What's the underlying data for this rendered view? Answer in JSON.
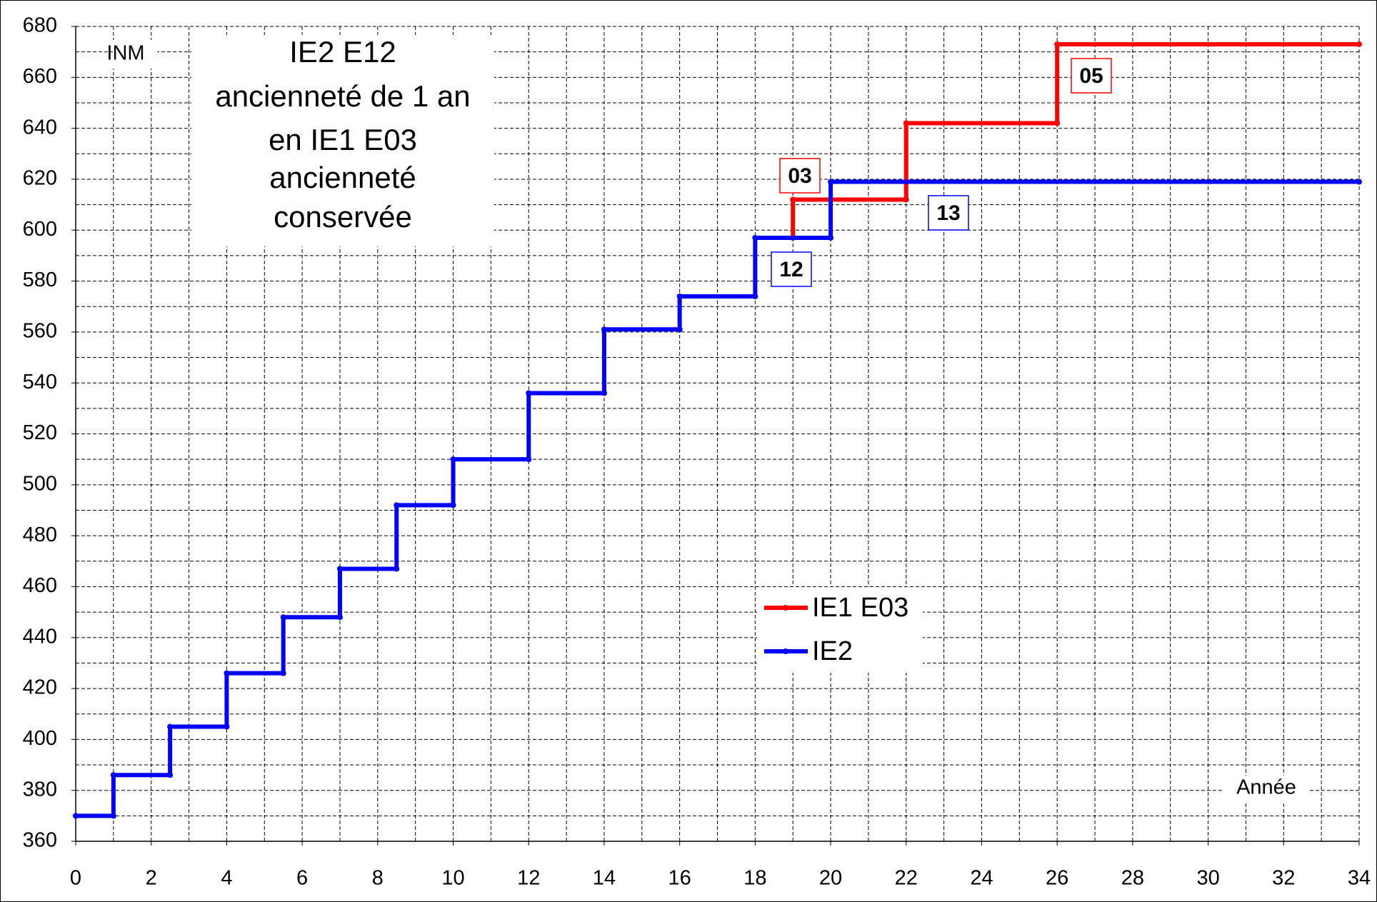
{
  "chart_data": {
    "type": "line",
    "title_lines": [
      "IE2 E12",
      "ancienneté de 1 an",
      "en IE1 E03",
      "ancienneté",
      "conservée"
    ],
    "y_label": "INM",
    "x_label": "Année",
    "xlim": [
      0,
      34
    ],
    "xticks": [
      0,
      2,
      4,
      6,
      8,
      10,
      12,
      14,
      16,
      18,
      20,
      22,
      24,
      26,
      28,
      30,
      32,
      34
    ],
    "ylim": [
      360,
      680
    ],
    "yticks": [
      360,
      380,
      400,
      420,
      440,
      460,
      480,
      500,
      520,
      540,
      560,
      580,
      600,
      620,
      640,
      660,
      680
    ],
    "grid": true,
    "series": [
      {
        "name": "IE1 E03",
        "color": "#ff0000",
        "x": [
          19,
          19,
          22,
          22,
          26,
          26,
          34
        ],
        "values": [
          597,
          612,
          612,
          642,
          642,
          673,
          673
        ]
      },
      {
        "name": "IE2",
        "color": "#0000ff",
        "x": [
          0,
          1,
          1,
          2.5,
          2.5,
          4,
          4,
          5.5,
          5.5,
          7,
          7,
          8.5,
          8.5,
          10,
          10,
          12,
          12,
          14,
          14,
          16,
          16,
          18,
          18,
          20,
          20,
          34
        ],
        "values": [
          370,
          370,
          386,
          386,
          405,
          405,
          426,
          426,
          448,
          448,
          467,
          467,
          492,
          492,
          510,
          510,
          536,
          536,
          561,
          561,
          574,
          574,
          597,
          597,
          619,
          619
        ]
      }
    ],
    "annotations": [
      {
        "text": "03",
        "color": "#ff0000"
      },
      {
        "text": "05",
        "color": "#ff0000"
      },
      {
        "text": "12",
        "color": "#0000ff"
      },
      {
        "text": "13",
        "color": "#0000ff"
      }
    ]
  }
}
